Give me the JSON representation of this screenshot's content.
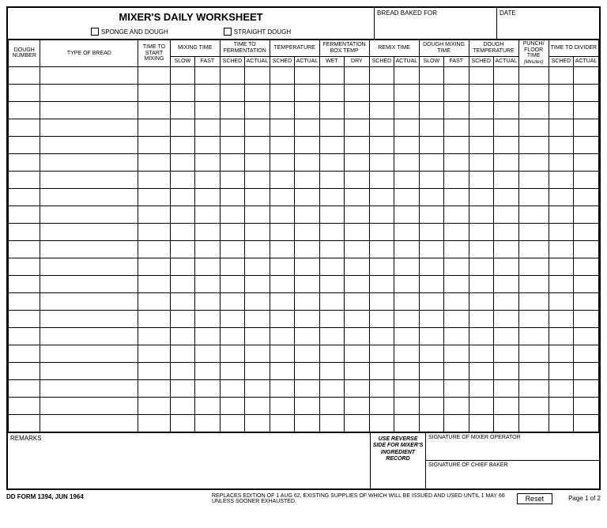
{
  "header": {
    "title": "MIXER'S DAILY WORKSHEET",
    "checkbox1": "SPONGE AND DOUGH",
    "checkbox2": "STRAIGHT DOUGH",
    "bread_label": "BREAD BAKED FOR",
    "date_label": "DATE"
  },
  "columns": {
    "dough_number": "DOUGH NUMBER",
    "type_bread": "TYPE OF BREAD",
    "time_start": "TIME TO START MIXING",
    "mixing_time": "MIXING TIME",
    "time_ferment": "TIME TO FERMENTATION",
    "temperature": "TEMPERATURE",
    "ferment_box": "FERMENTATION BOX TEMP",
    "remix": "REMIX TIME",
    "dough_mixing": "DOUGH MIXING TIME",
    "dough_temp": "DOUGH TEMPERATURE",
    "punch": "PUNCH/ FLOOR TIME",
    "minutes": "(Minutes)",
    "divider": "TIME TO DIVIDER",
    "slow": "SLOW",
    "fast": "FAST",
    "sched": "SCHED",
    "actual": "ACTUAL",
    "wet": "WET",
    "dry": "DRY"
  },
  "row_count": 21,
  "bottom": {
    "remarks": "REMARKS",
    "reverse": "USE REVERSE SIDE FOR MIXER'S INGREDIENT RECORD",
    "sig1": "SIGNATURE OF MIXER OPERATOR",
    "sig2": "SIGNATURE OF CHIEF BAKER"
  },
  "footer": {
    "form_id": "DD FORM 1394, JUN 1964",
    "note": "REPLACES EDITION OF 1 AUG 62, EXISTING SUPPLIES OF WHICH WILL BE ISSUED AND USED UNTIL 1 MAY 66 UNLESS SOONER EXHAUSTED.",
    "reset": "Reset",
    "page": "Page 1 of 2"
  },
  "col_widths": {
    "dough_number": 36,
    "type_bread": 110,
    "time_start": 36,
    "sub": 28,
    "punch": 34
  }
}
